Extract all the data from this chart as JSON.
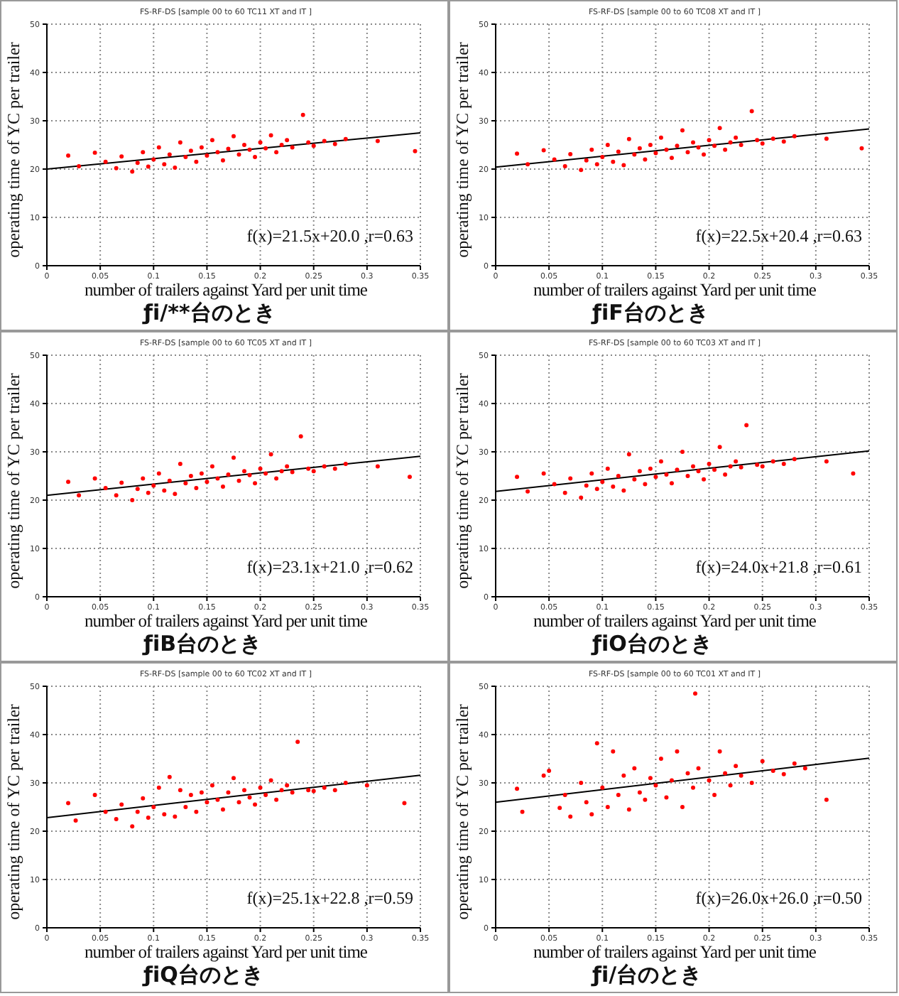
{
  "chart_data": [
    {
      "type": "scatter",
      "title": "FS-RF-DS [sample 00 to 60 TC11 XT and IT ]",
      "xlabel": "number of trailers against Yard per unit time",
      "ylabel": "operating time of YC per trailer",
      "xlim": [
        0,
        0.35
      ],
      "xticks": [
        0,
        0.05,
        0.1,
        0.15,
        0.2,
        0.25,
        0.3,
        0.35
      ],
      "ylim": [
        0,
        50
      ],
      "yticks": [
        0,
        10,
        20,
        30,
        40,
        50
      ],
      "grid": true,
      "legend": false,
      "marker": "circle",
      "annotations": [
        "f(x)=21.5x+20.0 ,r=0.63",
        "ƒi/**台のとき"
      ],
      "series": [
        {
          "color": "#ff0000",
          "x": [
            0.02,
            0.03,
            0.045,
            0.055,
            0.065,
            0.07,
            0.08,
            0.085,
            0.09,
            0.095,
            0.1,
            0.105,
            0.11,
            0.115,
            0.12,
            0.125,
            0.13,
            0.135,
            0.14,
            0.145,
            0.15,
            0.155,
            0.16,
            0.165,
            0.17,
            0.175,
            0.18,
            0.185,
            0.19,
            0.195,
            0.2,
            0.205,
            0.21,
            0.215,
            0.22,
            0.225,
            0.23,
            0.24,
            0.245,
            0.25,
            0.26,
            0.27,
            0.28,
            0.31,
            0.345
          ],
          "values": [
            22.8,
            20.6,
            23.4,
            21.5,
            20.2,
            22.6,
            19.5,
            21.3,
            23.5,
            20.5,
            22.0,
            24.5,
            21.0,
            23.0,
            20.3,
            25.5,
            22.5,
            23.8,
            21.5,
            24.5,
            22.8,
            26.0,
            23.5,
            21.8,
            24.2,
            26.8,
            23.0,
            25.0,
            24.0,
            22.5,
            25.5,
            24.3,
            27.0,
            23.5,
            25.0,
            26.0,
            24.5,
            31.2,
            25.5,
            24.8,
            25.8,
            25.2,
            26.2,
            25.8,
            23.7
          ]
        },
        {
          "type": "line",
          "color": "#000000",
          "marker": "none",
          "x": [
            0,
            0.35
          ],
          "values": [
            20.0,
            27.5
          ]
        }
      ]
    },
    {
      "type": "scatter",
      "title": "FS-RF-DS [sample 00 to 60 TC08 XT and IT ]",
      "xlabel": "number of trailers against Yard per unit time",
      "ylabel": "operating time of YC per trailer",
      "xlim": [
        0,
        0.35
      ],
      "xticks": [
        0,
        0.05,
        0.1,
        0.15,
        0.2,
        0.25,
        0.3,
        0.35
      ],
      "ylim": [
        0,
        50
      ],
      "yticks": [
        0,
        10,
        20,
        30,
        40,
        50
      ],
      "grid": true,
      "legend": false,
      "marker": "circle",
      "annotations": [
        "f(x)=22.5x+20.4 ,r=0.63",
        "ƒiF台のとき"
      ],
      "series": [
        {
          "color": "#ff0000",
          "x": [
            0.02,
            0.03,
            0.045,
            0.055,
            0.065,
            0.07,
            0.08,
            0.085,
            0.09,
            0.095,
            0.1,
            0.105,
            0.11,
            0.115,
            0.12,
            0.125,
            0.13,
            0.135,
            0.14,
            0.145,
            0.15,
            0.155,
            0.16,
            0.165,
            0.17,
            0.175,
            0.18,
            0.185,
            0.19,
            0.195,
            0.2,
            0.205,
            0.21,
            0.215,
            0.22,
            0.225,
            0.23,
            0.24,
            0.245,
            0.25,
            0.26,
            0.27,
            0.28,
            0.31,
            0.343
          ],
          "values": [
            23.2,
            21.0,
            23.9,
            22.0,
            20.6,
            23.1,
            19.8,
            21.8,
            24.0,
            21.0,
            22.5,
            25.0,
            21.5,
            23.6,
            20.8,
            26.2,
            23.0,
            24.3,
            22.0,
            25.0,
            23.3,
            26.5,
            24.0,
            22.3,
            24.8,
            28.0,
            23.5,
            25.5,
            24.5,
            23.0,
            26.0,
            24.8,
            28.5,
            24.0,
            25.5,
            26.5,
            25.0,
            32.0,
            26.0,
            25.3,
            26.3,
            25.7,
            26.8,
            26.3,
            24.3
          ]
        },
        {
          "type": "line",
          "color": "#000000",
          "marker": "none",
          "x": [
            0,
            0.35
          ],
          "values": [
            20.4,
            28.3
          ]
        }
      ]
    },
    {
      "type": "scatter",
      "title": "FS-RF-DS [sample 00 to 60 TC05 XT and IT ]",
      "xlabel": "number of trailers against Yard per unit time",
      "ylabel": "operating time of YC per trailer",
      "xlim": [
        0,
        0.35
      ],
      "xticks": [
        0,
        0.05,
        0.1,
        0.15,
        0.2,
        0.25,
        0.3,
        0.35
      ],
      "ylim": [
        0,
        50
      ],
      "yticks": [
        0,
        10,
        20,
        30,
        40,
        50
      ],
      "grid": true,
      "legend": false,
      "marker": "circle",
      "annotations": [
        "f(x)=23.1x+21.0 ,r=0.62",
        "ƒiB台のとき"
      ],
      "series": [
        {
          "color": "#ff0000",
          "x": [
            0.02,
            0.03,
            0.045,
            0.055,
            0.065,
            0.07,
            0.08,
            0.085,
            0.09,
            0.095,
            0.1,
            0.105,
            0.11,
            0.115,
            0.12,
            0.125,
            0.13,
            0.135,
            0.14,
            0.145,
            0.15,
            0.155,
            0.16,
            0.165,
            0.17,
            0.175,
            0.18,
            0.185,
            0.19,
            0.195,
            0.2,
            0.205,
            0.21,
            0.215,
            0.22,
            0.225,
            0.23,
            0.238,
            0.245,
            0.25,
            0.26,
            0.27,
            0.28,
            0.31,
            0.34
          ],
          "values": [
            23.8,
            21.0,
            24.5,
            22.5,
            21.0,
            23.6,
            20.0,
            22.3,
            24.5,
            21.5,
            23.0,
            25.5,
            22.0,
            24.0,
            21.3,
            27.5,
            23.5,
            25.0,
            22.5,
            25.5,
            23.8,
            27.0,
            24.5,
            22.8,
            25.3,
            28.8,
            24.0,
            26.0,
            25.2,
            23.5,
            26.5,
            25.5,
            29.5,
            24.5,
            26.0,
            27.0,
            25.8,
            33.2,
            26.5,
            26.0,
            27.0,
            26.5,
            27.5,
            27.0,
            24.8
          ]
        },
        {
          "type": "line",
          "color": "#000000",
          "marker": "none",
          "x": [
            0,
            0.35
          ],
          "values": [
            21.0,
            29.1
          ]
        }
      ]
    },
    {
      "type": "scatter",
      "title": "FS-RF-DS [sample 00 to 60 TC03 XT and IT ]",
      "xlabel": "number of trailers against Yard per unit time",
      "ylabel": "operating time of YC per trailer",
      "xlim": [
        0,
        0.35
      ],
      "xticks": [
        0,
        0.05,
        0.1,
        0.15,
        0.2,
        0.25,
        0.3,
        0.35
      ],
      "ylim": [
        0,
        50
      ],
      "yticks": [
        0,
        10,
        20,
        30,
        40,
        50
      ],
      "grid": true,
      "legend": false,
      "marker": "circle",
      "annotations": [
        "f(x)=24.0x+21.8 ,r=0.61",
        "ƒiO台のとき"
      ],
      "series": [
        {
          "color": "#ff0000",
          "x": [
            0.02,
            0.03,
            0.045,
            0.055,
            0.065,
            0.07,
            0.08,
            0.085,
            0.09,
            0.095,
            0.1,
            0.105,
            0.11,
            0.115,
            0.12,
            0.125,
            0.13,
            0.135,
            0.14,
            0.145,
            0.15,
            0.155,
            0.16,
            0.165,
            0.17,
            0.175,
            0.18,
            0.185,
            0.19,
            0.195,
            0.2,
            0.205,
            0.21,
            0.215,
            0.22,
            0.225,
            0.23,
            0.235,
            0.245,
            0.25,
            0.26,
            0.27,
            0.28,
            0.31,
            0.335
          ],
          "values": [
            24.8,
            21.8,
            25.5,
            23.3,
            21.5,
            24.5,
            20.5,
            23.0,
            25.5,
            22.3,
            23.8,
            26.5,
            22.8,
            25.0,
            22.0,
            29.5,
            24.3,
            26.0,
            23.3,
            26.5,
            24.8,
            28.0,
            25.3,
            23.5,
            26.3,
            30.0,
            25.0,
            27.0,
            26.0,
            24.3,
            27.5,
            26.3,
            31.0,
            25.3,
            27.0,
            28.0,
            26.8,
            35.5,
            27.3,
            27.0,
            28.0,
            27.5,
            28.5,
            28.0,
            25.5
          ]
        },
        {
          "type": "line",
          "color": "#000000",
          "marker": "none",
          "x": [
            0,
            0.35
          ],
          "values": [
            21.8,
            30.2
          ]
        }
      ]
    },
    {
      "type": "scatter",
      "title": "FS-RF-DS [sample 00 to 60 TC02 XT and IT ]",
      "xlabel": "number of trailers against Yard per unit time",
      "ylabel": "operating time of YC per trailer",
      "xlim": [
        0,
        0.35
      ],
      "xticks": [
        0,
        0.05,
        0.1,
        0.15,
        0.2,
        0.25,
        0.3,
        0.35
      ],
      "ylim": [
        0,
        50
      ],
      "yticks": [
        0,
        10,
        20,
        30,
        40,
        50
      ],
      "grid": true,
      "legend": false,
      "marker": "circle",
      "annotations": [
        "f(x)=25.1x+22.8 ,r=0.59",
        "ƒiQ台のとき"
      ],
      "series": [
        {
          "color": "#ff0000",
          "x": [
            0.02,
            0.027,
            0.045,
            0.055,
            0.065,
            0.07,
            0.08,
            0.085,
            0.09,
            0.095,
            0.1,
            0.105,
            0.11,
            0.115,
            0.12,
            0.125,
            0.13,
            0.135,
            0.14,
            0.145,
            0.15,
            0.155,
            0.16,
            0.165,
            0.17,
            0.175,
            0.18,
            0.185,
            0.19,
            0.195,
            0.2,
            0.205,
            0.21,
            0.215,
            0.22,
            0.225,
            0.23,
            0.235,
            0.245,
            0.25,
            0.26,
            0.27,
            0.28,
            0.3,
            0.335
          ],
          "values": [
            25.8,
            22.2,
            27.5,
            24.0,
            22.5,
            25.5,
            21.0,
            24.0,
            26.8,
            22.8,
            25.0,
            29.0,
            23.5,
            31.2,
            23.0,
            28.5,
            25.0,
            27.5,
            24.0,
            28.0,
            26.0,
            29.5,
            26.5,
            24.5,
            28.0,
            31.0,
            26.0,
            28.5,
            27.0,
            25.5,
            29.0,
            27.5,
            30.5,
            26.5,
            28.5,
            29.5,
            28.0,
            38.5,
            28.5,
            28.3,
            29.0,
            28.5,
            30.0,
            29.5,
            25.8
          ]
        },
        {
          "type": "line",
          "color": "#000000",
          "marker": "none",
          "x": [
            0,
            0.35
          ],
          "values": [
            22.8,
            31.6
          ]
        }
      ]
    },
    {
      "type": "scatter",
      "title": "FS-RF-DS [sample 00 to 60 TC01 XT and IT ]",
      "xlabel": "number of trailers against Yard per unit time",
      "ylabel": "operating time of YC per trailer",
      "xlim": [
        0,
        0.35
      ],
      "xticks": [
        0,
        0.05,
        0.1,
        0.15,
        0.2,
        0.25,
        0.3,
        0.35
      ],
      "ylim": [
        0,
        50
      ],
      "yticks": [
        0,
        10,
        20,
        30,
        40,
        50
      ],
      "grid": true,
      "legend": false,
      "marker": "circle",
      "annotations": [
        "f(x)=26.0x+26.0 ,r=0.50",
        "ƒi/台のとき"
      ],
      "series": [
        {
          "color": "#ff0000",
          "x": [
            0.02,
            0.025,
            0.045,
            0.05,
            0.06,
            0.065,
            0.07,
            0.08,
            0.085,
            0.09,
            0.095,
            0.1,
            0.105,
            0.11,
            0.115,
            0.12,
            0.125,
            0.13,
            0.135,
            0.14,
            0.145,
            0.15,
            0.155,
            0.16,
            0.165,
            0.17,
            0.175,
            0.18,
            0.185,
            0.187,
            0.19,
            0.2,
            0.205,
            0.21,
            0.215,
            0.22,
            0.225,
            0.23,
            0.24,
            0.25,
            0.26,
            0.27,
            0.28,
            0.29,
            0.31
          ],
          "values": [
            28.8,
            24.0,
            31.5,
            32.5,
            24.8,
            27.5,
            23.0,
            30.0,
            26.0,
            23.5,
            38.2,
            29.0,
            25.0,
            36.5,
            27.5,
            31.5,
            24.5,
            33.0,
            28.0,
            26.5,
            31.0,
            29.5,
            35.0,
            27.0,
            30.5,
            36.5,
            25.0,
            32.0,
            29.0,
            48.5,
            33.0,
            30.5,
            27.5,
            36.5,
            32.0,
            29.5,
            33.5,
            31.5,
            30.0,
            34.5,
            32.5,
            31.8,
            34.0,
            33.0,
            26.5
          ]
        },
        {
          "type": "line",
          "color": "#000000",
          "marker": "none",
          "x": [
            0,
            0.35
          ],
          "values": [
            26.0,
            35.1
          ]
        }
      ]
    }
  ]
}
